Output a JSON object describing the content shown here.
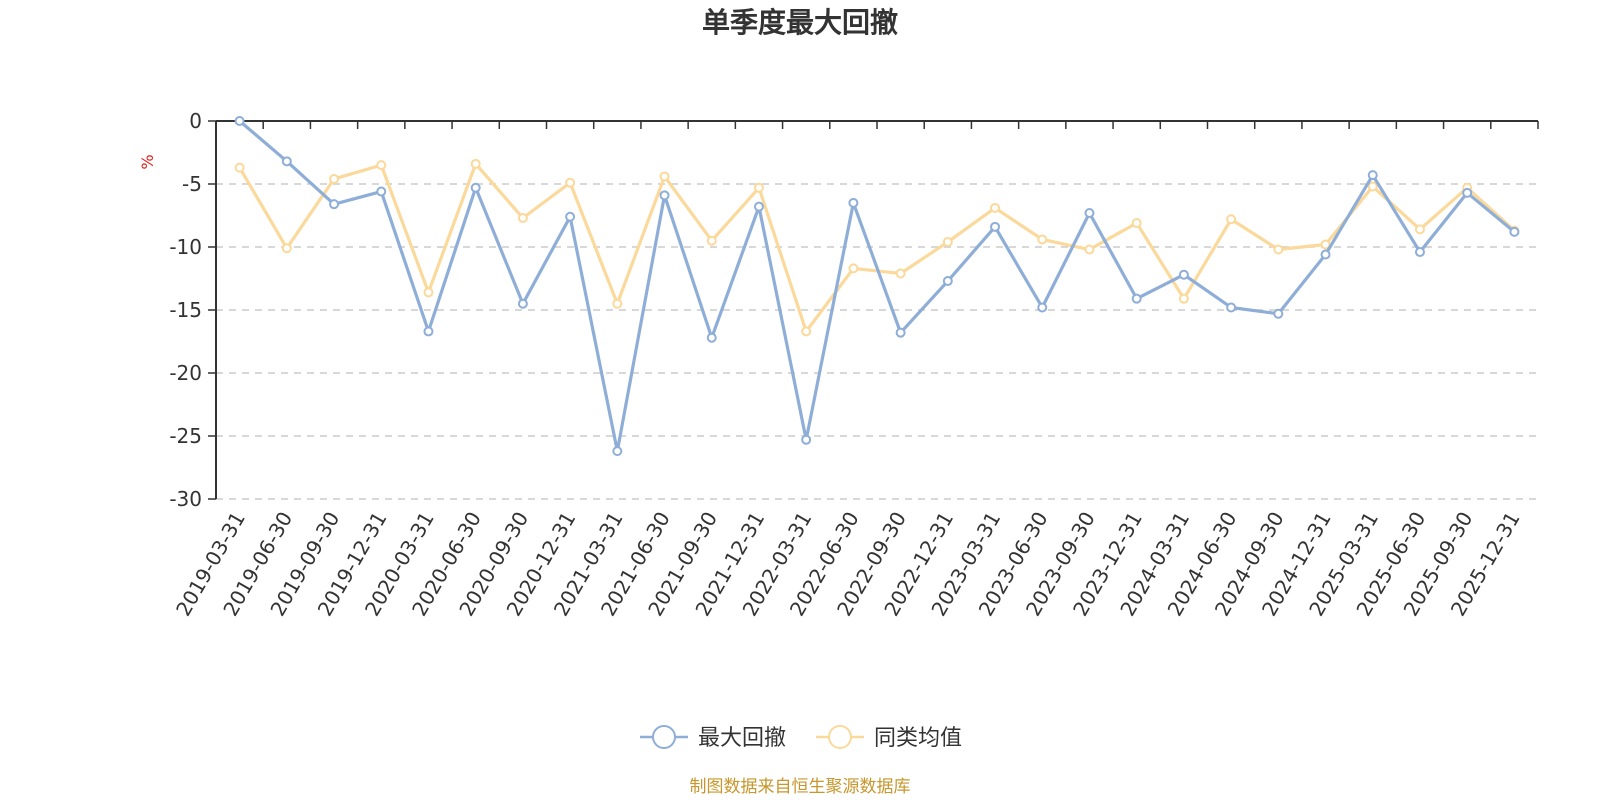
{
  "chart_data": {
    "type": "line",
    "title": "单季度最大回撤",
    "ylabel": "%",
    "ylim": [
      -30,
      0
    ],
    "yticks": [
      0,
      -5,
      -10,
      -15,
      -20,
      -25,
      -30
    ],
    "grid": true,
    "legend_position": "bottom-center",
    "source": "制图数据来自恒生聚源数据库",
    "categories": [
      "2019-03-31",
      "2019-06-30",
      "2019-09-30",
      "2019-12-31",
      "2020-03-31",
      "2020-06-30",
      "2020-09-30",
      "2020-12-31",
      "2021-03-31",
      "2021-06-30",
      "2021-09-30",
      "2021-12-31",
      "2022-03-31",
      "2022-06-30",
      "2022-09-30",
      "2022-12-31",
      "2023-03-31",
      "2023-06-30",
      "2023-09-30",
      "2023-12-31",
      "2024-03-31",
      "2024-06-30",
      "2024-09-30",
      "2024-12-31",
      "2025-03-31",
      "2025-06-30",
      "2025-09-30",
      "2025-12-31"
    ],
    "series": [
      {
        "name": "最大回撤",
        "color": "#8eaed8",
        "values": [
          0,
          -3.2,
          -6.6,
          -5.6,
          -16.7,
          -5.3,
          -14.5,
          -7.6,
          -26.2,
          -5.9,
          -17.2,
          -6.8,
          -25.3,
          -6.5,
          -16.8,
          -12.7,
          -8.4,
          -14.8,
          -7.3,
          -14.1,
          -12.2,
          -14.8,
          -15.3,
          -10.6,
          -4.3,
          -10.4,
          -5.7,
          -8.8
        ]
      },
      {
        "name": "同类均值",
        "color": "#fad99b",
        "values": [
          -3.7,
          -10.1,
          -4.6,
          -3.5,
          -13.6,
          -3.4,
          -7.7,
          -4.9,
          -14.5,
          -4.4,
          -9.5,
          -5.3,
          -16.7,
          -11.7,
          -12.1,
          -9.6,
          -6.9,
          -9.4,
          -10.2,
          -8.1,
          -14.1,
          -7.8,
          -10.2,
          -9.8,
          -5.2,
          -8.6,
          -5.3,
          -8.7
        ]
      }
    ]
  }
}
